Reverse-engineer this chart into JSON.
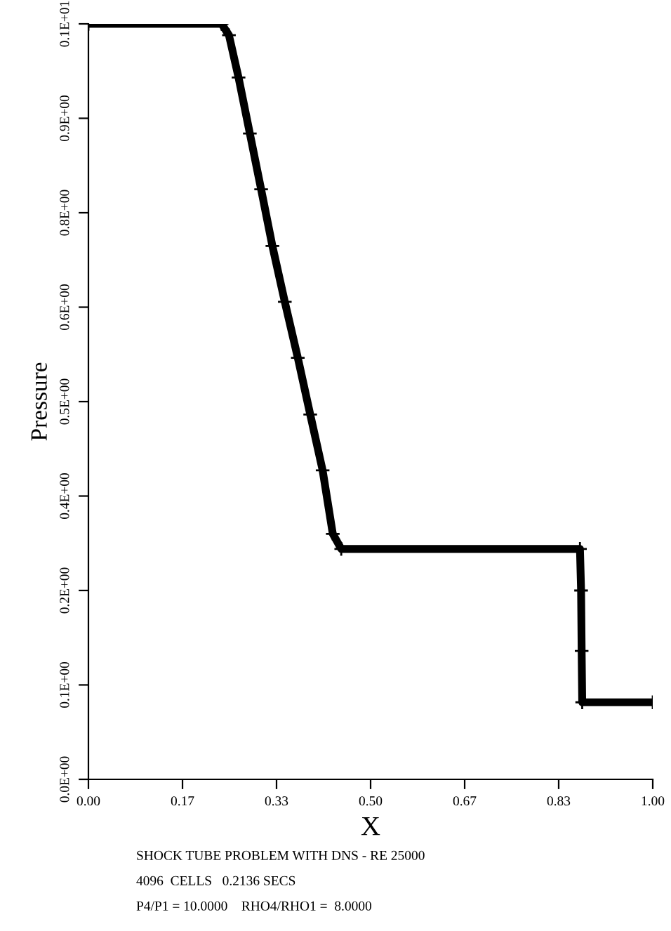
{
  "chart_data": {
    "type": "line",
    "xlabel": "X",
    "ylabel": "Pressure",
    "annotations": [
      "SHOCK TUBE PROBLEM WITH DNS - RE 25000",
      "4096  CELLS   0.2136 SECS",
      "P4/P1 = 10.0000    RHO4/RHO1 =  8.0000"
    ],
    "x": [
      0,
      0.236,
      0.249,
      0.266,
      0.286,
      0.306,
      0.326,
      0.348,
      0.371,
      0.393,
      0.415,
      0.433,
      0.448,
      0.871,
      0.873,
      0.874,
      0.875,
      1.0
    ],
    "series": [
      {
        "color": "#000000",
        "values": [
          1.0,
          1.0,
          0.985,
          0.929,
          0.855,
          0.781,
          0.706,
          0.632,
          0.558,
          0.483,
          0.409,
          0.325,
          0.305,
          0.305,
          0.25,
          0.17,
          0.102,
          0.102
        ]
      }
    ],
    "marker": "cross",
    "line_style": "solid",
    "grid": false,
    "legend": false,
    "xlim": [
      0,
      1
    ],
    "ylim": [
      0,
      1
    ],
    "xticks": [
      {
        "value": 0,
        "label": "0.00"
      },
      {
        "value": 0.1667,
        "label": "0.17"
      },
      {
        "value": 0.3333,
        "label": "0.33"
      },
      {
        "value": 0.5,
        "label": "0.50"
      },
      {
        "value": 0.6667,
        "label": "0.67"
      },
      {
        "value": 0.8333,
        "label": "0.83"
      },
      {
        "value": 1,
        "label": "1.00"
      }
    ],
    "yticks": [
      {
        "value": 0,
        "label": "0.0E+00"
      },
      {
        "value": 0.125,
        "label": "0.1E+00"
      },
      {
        "value": 0.25,
        "label": "0.2E+00"
      },
      {
        "value": 0.375,
        "label": "0.4E+00"
      },
      {
        "value": 0.5,
        "label": "0.5E+00"
      },
      {
        "value": 0.625,
        "label": "0.6E+00"
      },
      {
        "value": 0.75,
        "label": "0.8E+00"
      },
      {
        "value": 0.875,
        "label": "0.9E+00"
      },
      {
        "value": 1,
        "label": "0.1E+01"
      }
    ]
  }
}
